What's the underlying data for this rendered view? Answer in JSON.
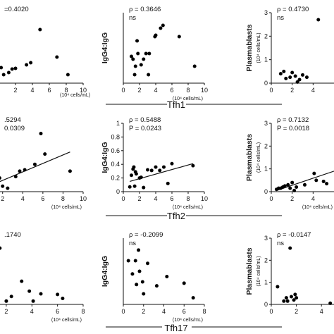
{
  "chart_data": [
    {
      "type": "scatter",
      "row": "Tfh1",
      "col": 0,
      "ylabel": "",
      "xunit": "",
      "xlim": [
        0,
        10
      ],
      "ylim": [
        0,
        1
      ],
      "xticks": [
        "2",
        "4",
        "6",
        "8",
        "10"
      ],
      "yticks": [],
      "stats": [
        "=0.4020"
      ],
      "points": [
        [
          0.3,
          0.22
        ],
        [
          0.6,
          0.12
        ],
        [
          1.2,
          0.15
        ],
        [
          1.6,
          0.2
        ],
        [
          2.0,
          0.21
        ],
        [
          3.3,
          0.26
        ],
        [
          3.8,
          0.29
        ],
        [
          4.9,
          0.76
        ],
        [
          6.9,
          0.37
        ],
        [
          8.2,
          0.12
        ]
      ],
      "fit": null
    },
    {
      "type": "scatter",
      "row": "Tfh1",
      "col": 1,
      "ylabel": "IgG4:IgG",
      "xunit": "(10⁴ cells/mL)",
      "xlim": [
        0,
        10
      ],
      "ylim": [
        0,
        0.5
      ],
      "xticks": [
        "0",
        "2",
        "4",
        "6",
        "8",
        "10"
      ],
      "yticks": [],
      "stats": [
        "ρ = 0.3646",
        "ns"
      ],
      "points": [
        [
          1.0,
          0.19
        ],
        [
          1.2,
          0.17
        ],
        [
          1.4,
          0.06
        ],
        [
          1.5,
          0.12
        ],
        [
          1.7,
          0.3
        ],
        [
          1.8,
          0.21
        ],
        [
          2.2,
          0.13
        ],
        [
          2.5,
          0.17
        ],
        [
          2.8,
          0.21
        ],
        [
          3.1,
          0.06
        ],
        [
          3.2,
          0.21
        ],
        [
          3.9,
          0.33
        ],
        [
          4.0,
          0.34
        ],
        [
          4.6,
          0.39
        ],
        [
          4.9,
          0.41
        ],
        [
          6.9,
          0.33
        ],
        [
          8.8,
          0.12
        ]
      ],
      "fit": null
    },
    {
      "type": "scatter",
      "row": "Tfh1",
      "col": 2,
      "ylabel": "Plasmablasts",
      "xunit": "",
      "xlim": [
        0,
        6
      ],
      "ylim": [
        0,
        3
      ],
      "xticks": [
        "0",
        "2",
        "4"
      ],
      "yticks": [
        "0",
        "1",
        "2",
        "3"
      ],
      "stats": [
        "ρ = 0.4730",
        "ns"
      ],
      "points": [
        [
          0.9,
          0.4
        ],
        [
          1.2,
          0.5
        ],
        [
          1.4,
          0.2
        ],
        [
          1.8,
          0.25
        ],
        [
          2.0,
          0.45
        ],
        [
          2.3,
          0.3
        ],
        [
          2.5,
          0.05
        ],
        [
          2.7,
          0.15
        ],
        [
          3.0,
          0.35
        ],
        [
          3.4,
          0.25
        ],
        [
          4.5,
          2.7
        ]
      ],
      "fit": null
    },
    {
      "type": "scatter",
      "row": "Tfh2",
      "col": 0,
      "ylabel": "",
      "xunit": "(10⁴ cells/mL)",
      "xlim": [
        1.6,
        10
      ],
      "ylim": [
        0,
        1
      ],
      "xticks": [
        "2",
        "4",
        "6",
        "8",
        "10"
      ],
      "yticks": [],
      "stats": [
        ".5294",
        "0.0309"
      ],
      "points": [
        [
          1.7,
          0.2
        ],
        [
          2.0,
          0.08
        ],
        [
          2.5,
          0.05
        ],
        [
          3.3,
          0.22
        ],
        [
          3.7,
          0.3
        ],
        [
          4.2,
          0.32
        ],
        [
          5.2,
          0.4
        ],
        [
          5.8,
          0.85
        ],
        [
          6.2,
          0.55
        ],
        [
          8.7,
          0.3
        ]
      ],
      "fit": [
        [
          1.6,
          0.14
        ],
        [
          8.7,
          0.58
        ]
      ]
    },
    {
      "type": "scatter",
      "row": "Tfh2",
      "col": 1,
      "ylabel": "IgG4:IgG",
      "xunit": "(10⁴ cells/mL)",
      "xlim": [
        0,
        10
      ],
      "ylim": [
        0,
        1
      ],
      "xticks": [
        "0",
        "2",
        "4",
        "6",
        "8",
        "10"
      ],
      "yticks": [
        "0",
        "0.2",
        "0.4",
        "0.6",
        "0.8",
        "1"
      ],
      "stats": [
        "ρ = 0.5488",
        "P = 0.0243"
      ],
      "points": [
        [
          0.8,
          0.07
        ],
        [
          1.0,
          0.24
        ],
        [
          1.2,
          0.33
        ],
        [
          1.3,
          0.36
        ],
        [
          1.4,
          0.08
        ],
        [
          1.5,
          0.29
        ],
        [
          1.6,
          0.26
        ],
        [
          2.0,
          0.2
        ],
        [
          2.2,
          0.21
        ],
        [
          2.5,
          0.06
        ],
        [
          3.0,
          0.32
        ],
        [
          3.5,
          0.31
        ],
        [
          4.0,
          0.36
        ],
        [
          4.5,
          0.31
        ],
        [
          5.0,
          0.36
        ],
        [
          5.5,
          0.12
        ],
        [
          6.0,
          0.41
        ],
        [
          8.6,
          0.38
        ]
      ],
      "fit": [
        [
          0.8,
          0.15
        ],
        [
          8.6,
          0.41
        ]
      ]
    },
    {
      "type": "scatter",
      "row": "Tfh2",
      "col": 2,
      "ylabel": "Plasmablasts",
      "xunit": "(10⁴ cells/mL)",
      "xlim": [
        0,
        6
      ],
      "ylim": [
        0,
        3
      ],
      "xticks": [
        "0",
        "2",
        "4"
      ],
      "yticks": [
        "0",
        "1",
        "2",
        "3"
      ],
      "stats": [
        "ρ = 0.7132",
        "P = 0.0018"
      ],
      "points": [
        [
          0.5,
          0.1
        ],
        [
          0.7,
          0.15
        ],
        [
          0.9,
          0.15
        ],
        [
          1.1,
          0.2
        ],
        [
          1.3,
          0.25
        ],
        [
          1.6,
          0.3
        ],
        [
          1.8,
          0.15
        ],
        [
          2.0,
          0.4
        ],
        [
          2.2,
          0.05
        ],
        [
          2.4,
          0.2
        ],
        [
          3.2,
          0.3
        ],
        [
          4.1,
          0.8
        ],
        [
          4.3,
          0.5
        ],
        [
          5.0,
          0.45
        ],
        [
          5.3,
          0.35
        ]
      ],
      "fit": [
        [
          0.5,
          0.05
        ],
        [
          6.0,
          0.9
        ]
      ]
    },
    {
      "type": "scatter",
      "row": "Tfh17",
      "col": 0,
      "ylabel": "",
      "xunit": "(10⁴ cells/mL)",
      "xlim": [
        1.4,
        8
      ],
      "ylim": [
        0,
        1
      ],
      "xticks": [
        "2",
        "4",
        "6",
        "8"
      ],
      "yticks": [],
      "stats": [
        ".1740"
      ],
      "points": [
        [
          1.5,
          0.85
        ],
        [
          2.0,
          0.05
        ],
        [
          2.4,
          0.12
        ],
        [
          3.2,
          0.35
        ],
        [
          3.8,
          0.2
        ],
        [
          4.1,
          0.05
        ],
        [
          4.7,
          0.16
        ],
        [
          6.0,
          0.15
        ],
        [
          6.4,
          0.09
        ]
      ],
      "fit": null
    },
    {
      "type": "scatter",
      "row": "Tfh17",
      "col": 1,
      "ylabel": "IgG4:IgG",
      "xunit": "(10⁴ cells/mL)",
      "xlim": [
        0,
        8
      ],
      "ylim": [
        0,
        0.5
      ],
      "xticks": [
        "0",
        "2",
        "4",
        "6",
        "8"
      ],
      "yticks": [],
      "stats": [
        "ρ = -0.2099",
        "ns"
      ],
      "points": [
        [
          0.5,
          0.33
        ],
        [
          0.9,
          0.23
        ],
        [
          1.2,
          0.33
        ],
        [
          1.3,
          0.15
        ],
        [
          1.5,
          0.41
        ],
        [
          1.6,
          0.25
        ],
        [
          1.9,
          0.17
        ],
        [
          2.0,
          0.08
        ],
        [
          2.4,
          0.31
        ],
        [
          3.3,
          0.14
        ],
        [
          4.3,
          0.21
        ],
        [
          6.0,
          0.16
        ],
        [
          6.9,
          0.05
        ]
      ],
      "fit": null
    },
    {
      "type": "scatter",
      "row": "Tfh17",
      "col": 2,
      "ylabel": "Plasmablasts",
      "xunit": "",
      "xlim": [
        0,
        5
      ],
      "ylim": [
        0,
        3
      ],
      "xticks": [
        "0",
        "2",
        "4"
      ],
      "yticks": [
        "0",
        "1",
        "2",
        "3"
      ],
      "stats": [
        "ρ = -0.0147",
        "ns"
      ],
      "points": [
        [
          0.5,
          0.8
        ],
        [
          1.0,
          0.15
        ],
        [
          1.2,
          0.3
        ],
        [
          1.3,
          0.15
        ],
        [
          1.5,
          2.55
        ],
        [
          1.6,
          0.35
        ],
        [
          1.8,
          0.2
        ],
        [
          1.9,
          0.45
        ],
        [
          2.0,
          0.3
        ],
        [
          4.7,
          0.05
        ]
      ],
      "fit": null
    }
  ],
  "row_labels": {
    "tfh1": "Tfh1",
    "tfh2": "Tfh2",
    "tfh17": "Tfh17"
  },
  "unit_note": {
    "line1": "(10⁴ cells/mL)"
  }
}
